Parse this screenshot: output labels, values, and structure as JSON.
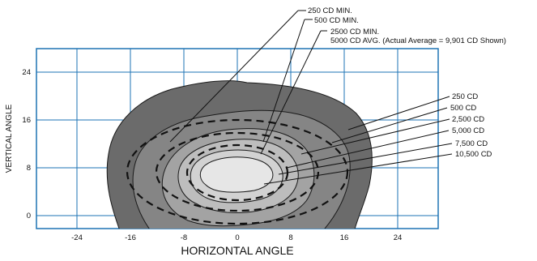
{
  "diagram": {
    "x_axis": {
      "title": "HORIZONTAL ANGLE",
      "ticks": [
        "-24",
        "-16",
        "-8",
        "0",
        "8",
        "16",
        "24"
      ],
      "tick_values": [
        -24,
        -16,
        -8,
        0,
        8,
        16,
        24
      ]
    },
    "y_axis": {
      "title": "VERTICAL ANGLE",
      "ticks": [
        "0",
        "8",
        "16",
        "24"
      ],
      "tick_values": [
        0,
        8,
        16,
        24
      ]
    },
    "top_callouts": {
      "c250": "250 CD MIN.",
      "c500": "500 CD MIN.",
      "c2500": "2500 CD MIN.",
      "c5000": "5000 CD AVG. (Actual Average = 9,901 CD Shown)"
    },
    "right_callouts": {
      "r250": "250 CD",
      "r500": "500 CD",
      "r2500": "2,500 CD",
      "r5000": "5,000 CD",
      "r7500": "7,500 CD",
      "r10500": "10,500 CD"
    },
    "colors": {
      "grid": "#1e73b4",
      "contour_250": "#6b6b6b",
      "contour_500": "#858585",
      "contour_2500": "#a3a3a3",
      "contour_5000": "#bdbdbd",
      "contour_7500": "#d2d2d2",
      "contour_10500": "#e6e6e6"
    }
  }
}
